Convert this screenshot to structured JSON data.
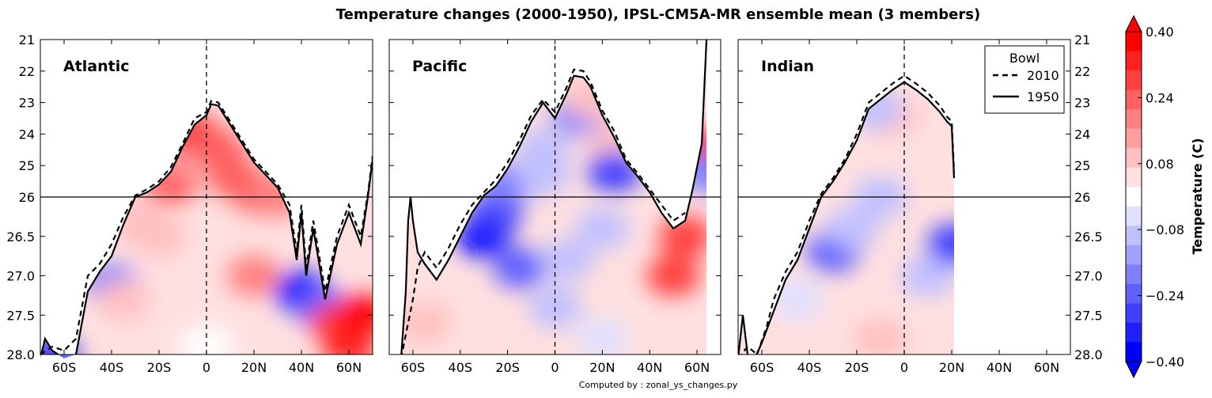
{
  "title": "Temperature changes (2000-1950), IPSL-CM5A-MR ensemble mean (3 members)",
  "footer": "Computed by : zonal_ys_changes.py",
  "colors": {
    "levels": [
      "#0000ff",
      "#2020ff",
      "#4040ff",
      "#6060ff",
      "#8080ff",
      "#a0a0ff",
      "#c0c0ff",
      "#e0e0ff",
      "#ffffff",
      "#ffe0e0",
      "#ffc0c0",
      "#ffa0a0",
      "#ff8080",
      "#ff6060",
      "#ff4040",
      "#ff2020",
      "#ff0000"
    ],
    "bowl_line": "#000000"
  },
  "chart_data": {
    "type": "heatmap",
    "title": "Temperature changes (2000-1950), IPSL-CM5A-MR ensemble mean (3 members)",
    "ylabel": "",
    "xlim": [
      -70,
      70
    ],
    "x_ticks": [
      -60,
      -40,
      -20,
      0,
      20,
      40,
      60
    ],
    "x_tick_labels": [
      "60S",
      "40S",
      "20S",
      "0",
      "20N",
      "40N",
      "60N"
    ],
    "y_ticks": [
      21,
      22,
      23,
      24,
      25,
      26,
      26.5,
      27.0,
      27.5,
      28.0
    ],
    "y_tick_labels": [
      "21",
      "22",
      "23",
      "24",
      "25",
      "26",
      "26.5",
      "27.0",
      "27.5",
      "28.0"
    ],
    "y_axis": "density (non-linear: 21-26 upper half, 26-28 lower half), inverted",
    "hline_at": 26,
    "vline_at": 0,
    "legend": {
      "title": "Bowl",
      "entries": [
        {
          "label": "2010",
          "style": "dashed"
        },
        {
          "label": "1950",
          "style": "solid"
        }
      ],
      "placement": "top-right of Indian panel"
    },
    "colorbar": {
      "label": "Temperature (C)",
      "range": [
        -0.4,
        0.4
      ],
      "tick_values": [
        0.4,
        0.24,
        0.08,
        -0.08,
        -0.24,
        -0.4
      ],
      "tick_labels": [
        "0.40",
        "0.24",
        "0.08",
        "−0.08",
        "−0.24",
        "−0.40"
      ]
    },
    "panels": [
      {
        "name": "Atlantic",
        "bowl_1950": [
          [
            -70,
            28.05
          ],
          [
            -68,
            27.8
          ],
          [
            -65,
            27.95
          ],
          [
            -60,
            28.05
          ],
          [
            -55,
            28.0
          ],
          [
            -50,
            27.2
          ],
          [
            -45,
            26.95
          ],
          [
            -40,
            26.75
          ],
          [
            -35,
            26.35
          ],
          [
            -30,
            26.0
          ],
          [
            -25,
            25.85
          ],
          [
            -20,
            25.6
          ],
          [
            -15,
            25.2
          ],
          [
            -10,
            24.4
          ],
          [
            -5,
            23.7
          ],
          [
            0,
            23.4
          ],
          [
            2,
            23.05
          ],
          [
            5,
            23.1
          ],
          [
            10,
            23.7
          ],
          [
            15,
            24.3
          ],
          [
            20,
            24.9
          ],
          [
            25,
            25.3
          ],
          [
            30,
            25.7
          ],
          [
            35,
            26.2
          ],
          [
            38,
            26.8
          ],
          [
            40,
            26.2
          ],
          [
            42,
            27.0
          ],
          [
            45,
            26.4
          ],
          [
            50,
            27.3
          ],
          [
            55,
            26.6
          ],
          [
            60,
            26.2
          ],
          [
            65,
            26.6
          ],
          [
            68,
            26.0
          ],
          [
            70,
            24.8
          ]
        ],
        "bowl_2010": [
          [
            -70,
            28.0
          ],
          [
            -65,
            27.9
          ],
          [
            -60,
            27.95
          ],
          [
            -55,
            27.8
          ],
          [
            -50,
            27.0
          ],
          [
            -45,
            26.85
          ],
          [
            -40,
            26.6
          ],
          [
            -35,
            26.25
          ],
          [
            -30,
            25.95
          ],
          [
            -25,
            25.75
          ],
          [
            -20,
            25.5
          ],
          [
            -15,
            25.05
          ],
          [
            -10,
            24.3
          ],
          [
            -5,
            23.5
          ],
          [
            0,
            23.3
          ],
          [
            2,
            22.95
          ],
          [
            5,
            23.0
          ],
          [
            10,
            23.6
          ],
          [
            15,
            24.2
          ],
          [
            20,
            24.8
          ],
          [
            25,
            25.2
          ],
          [
            30,
            25.6
          ],
          [
            35,
            26.1
          ],
          [
            38,
            26.7
          ],
          [
            40,
            26.1
          ],
          [
            42,
            26.9
          ],
          [
            45,
            26.3
          ],
          [
            50,
            27.2
          ],
          [
            55,
            26.5
          ],
          [
            60,
            26.1
          ],
          [
            65,
            26.5
          ],
          [
            68,
            25.9
          ],
          [
            70,
            24.7
          ]
        ],
        "anomalies": [
          {
            "x": -15,
            "y": 25.6,
            "v": 0.24
          },
          {
            "x": -10,
            "y": 24.6,
            "v": 0.16
          },
          {
            "x": -5,
            "y": 24.0,
            "v": 0.28
          },
          {
            "x": 5,
            "y": 24.5,
            "v": 0.24
          },
          {
            "x": 12,
            "y": 25.4,
            "v": 0.24
          },
          {
            "x": 22,
            "y": 25.9,
            "v": 0.24
          },
          {
            "x": 30,
            "y": 26.0,
            "v": 0.2
          },
          {
            "x": -30,
            "y": 26.3,
            "v": 0.1
          },
          {
            "x": -20,
            "y": 26.5,
            "v": 0.12
          },
          {
            "x": -40,
            "y": 27.1,
            "v": -0.2
          },
          {
            "x": -35,
            "y": 27.3,
            "v": 0.08
          },
          {
            "x": 20,
            "y": 27.0,
            "v": 0.2
          },
          {
            "x": 40,
            "y": 27.2,
            "v": -0.4
          },
          {
            "x": 48,
            "y": 27.4,
            "v": -0.24
          },
          {
            "x": 55,
            "y": 27.6,
            "v": 0.32
          },
          {
            "x": 65,
            "y": 27.5,
            "v": 0.4
          },
          {
            "x": 60,
            "y": 27.9,
            "v": 0.36
          },
          {
            "x": -65,
            "y": 28.0,
            "v": -0.3
          },
          {
            "x": 0,
            "y": 27.9,
            "v": 0.0
          }
        ]
      },
      {
        "name": "Pacific",
        "bowl_1950": [
          [
            -65,
            28.05
          ],
          [
            -63,
            27.2
          ],
          [
            -62,
            26.3
          ],
          [
            -61,
            26.0
          ],
          [
            -60,
            26.3
          ],
          [
            -58,
            26.7
          ],
          [
            -55,
            26.85
          ],
          [
            -50,
            27.05
          ],
          [
            -45,
            26.8
          ],
          [
            -40,
            26.5
          ],
          [
            -35,
            26.2
          ],
          [
            -30,
            25.95
          ],
          [
            -25,
            25.65
          ],
          [
            -20,
            25.1
          ],
          [
            -15,
            24.4
          ],
          [
            -10,
            23.6
          ],
          [
            -5,
            23.0
          ],
          [
            0,
            23.5
          ],
          [
            5,
            22.7
          ],
          [
            8,
            22.15
          ],
          [
            12,
            22.2
          ],
          [
            15,
            22.5
          ],
          [
            20,
            23.4
          ],
          [
            25,
            24.1
          ],
          [
            30,
            24.9
          ],
          [
            35,
            25.35
          ],
          [
            40,
            25.85
          ],
          [
            45,
            26.2
          ],
          [
            50,
            26.4
          ],
          [
            55,
            26.3
          ],
          [
            58,
            25.8
          ],
          [
            62,
            24.3
          ],
          [
            64,
            21.0
          ]
        ],
        "bowl_2010": [
          [
            -65,
            28.05
          ],
          [
            -62,
            27.6
          ],
          [
            -60,
            27.3
          ],
          [
            -58,
            26.9
          ],
          [
            -55,
            26.7
          ],
          [
            -50,
            26.9
          ],
          [
            -45,
            26.65
          ],
          [
            -40,
            26.35
          ],
          [
            -35,
            26.1
          ],
          [
            -30,
            25.85
          ],
          [
            -25,
            25.45
          ],
          [
            -20,
            24.9
          ],
          [
            -15,
            24.2
          ],
          [
            -10,
            23.4
          ],
          [
            -5,
            22.9
          ],
          [
            0,
            23.3
          ],
          [
            5,
            22.5
          ],
          [
            8,
            21.95
          ],
          [
            12,
            22.0
          ],
          [
            15,
            22.35
          ],
          [
            20,
            23.25
          ],
          [
            25,
            23.9
          ],
          [
            30,
            24.8
          ],
          [
            35,
            25.25
          ],
          [
            40,
            25.75
          ],
          [
            45,
            26.1
          ],
          [
            50,
            26.3
          ],
          [
            55,
            26.2
          ]
        ],
        "anomalies": [
          {
            "x": -30,
            "y": 26.5,
            "v": -0.4
          },
          {
            "x": -25,
            "y": 26.2,
            "v": -0.3
          },
          {
            "x": -15,
            "y": 26.9,
            "v": -0.24
          },
          {
            "x": -20,
            "y": 25.6,
            "v": -0.2
          },
          {
            "x": -5,
            "y": 25.3,
            "v": -0.12
          },
          {
            "x": -5,
            "y": 24.5,
            "v": -0.08
          },
          {
            "x": 10,
            "y": 23.4,
            "v": -0.2
          },
          {
            "x": 15,
            "y": 22.9,
            "v": 0.1
          },
          {
            "x": 25,
            "y": 24.3,
            "v": 0.08
          },
          {
            "x": 25,
            "y": 25.2,
            "v": -0.3
          },
          {
            "x": 20,
            "y": 26.4,
            "v": -0.12
          },
          {
            "x": 0,
            "y": 27.4,
            "v": -0.1
          },
          {
            "x": 20,
            "y": 27.8,
            "v": -0.06
          },
          {
            "x": 50,
            "y": 27.0,
            "v": 0.3
          },
          {
            "x": 55,
            "y": 26.5,
            "v": 0.28
          },
          {
            "x": 62,
            "y": 24.5,
            "v": 0.36
          },
          {
            "x": 64,
            "y": 25.2,
            "v": -0.2
          },
          {
            "x": -55,
            "y": 27.6,
            "v": 0.1
          },
          {
            "x": 5,
            "y": 26.8,
            "v": -0.12
          }
        ]
      },
      {
        "name": "Indian",
        "bowl_1950": [
          [
            -70,
            28.05
          ],
          [
            -68,
            27.5
          ],
          [
            -66,
            28.0
          ],
          [
            -63,
            28.05
          ],
          [
            -60,
            27.85
          ],
          [
            -55,
            27.45
          ],
          [
            -50,
            27.05
          ],
          [
            -45,
            26.8
          ],
          [
            -40,
            26.4
          ],
          [
            -35,
            26.0
          ],
          [
            -30,
            25.5
          ],
          [
            -25,
            24.9
          ],
          [
            -20,
            24.2
          ],
          [
            -15,
            23.2
          ],
          [
            -10,
            22.9
          ],
          [
            -5,
            22.6
          ],
          [
            0,
            22.35
          ],
          [
            5,
            22.6
          ],
          [
            10,
            22.9
          ],
          [
            15,
            23.3
          ],
          [
            18,
            23.6
          ],
          [
            20,
            23.75
          ],
          [
            21,
            25.4
          ]
        ],
        "bowl_2010": [
          [
            -70,
            28.05
          ],
          [
            -66,
            27.9
          ],
          [
            -62,
            28.0
          ],
          [
            -58,
            27.65
          ],
          [
            -55,
            27.3
          ],
          [
            -50,
            26.95
          ],
          [
            -45,
            26.7
          ],
          [
            -40,
            26.3
          ],
          [
            -35,
            25.9
          ],
          [
            -30,
            25.4
          ],
          [
            -25,
            24.8
          ],
          [
            -20,
            24.0
          ],
          [
            -15,
            23.0
          ],
          [
            -10,
            22.7
          ],
          [
            -5,
            22.4
          ],
          [
            0,
            22.15
          ],
          [
            5,
            22.4
          ],
          [
            10,
            22.7
          ],
          [
            15,
            23.1
          ],
          [
            18,
            23.45
          ],
          [
            20,
            23.6
          ],
          [
            21,
            25.2
          ]
        ],
        "anomalies": [
          {
            "x": -30,
            "y": 26.7,
            "v": -0.24
          },
          {
            "x": -22,
            "y": 26.4,
            "v": -0.12
          },
          {
            "x": -10,
            "y": 26.0,
            "v": -0.08
          },
          {
            "x": -5,
            "y": 23.5,
            "v": 0.08
          },
          {
            "x": 5,
            "y": 24.5,
            "v": 0.06
          },
          {
            "x": -10,
            "y": 27.8,
            "v": 0.08
          },
          {
            "x": 10,
            "y": 27.0,
            "v": -0.08
          },
          {
            "x": -12,
            "y": 23.2,
            "v": -0.12
          },
          {
            "x": 21,
            "y": 26.6,
            "v": -0.3
          },
          {
            "x": -45,
            "y": 27.3,
            "v": -0.06
          }
        ]
      }
    ]
  }
}
